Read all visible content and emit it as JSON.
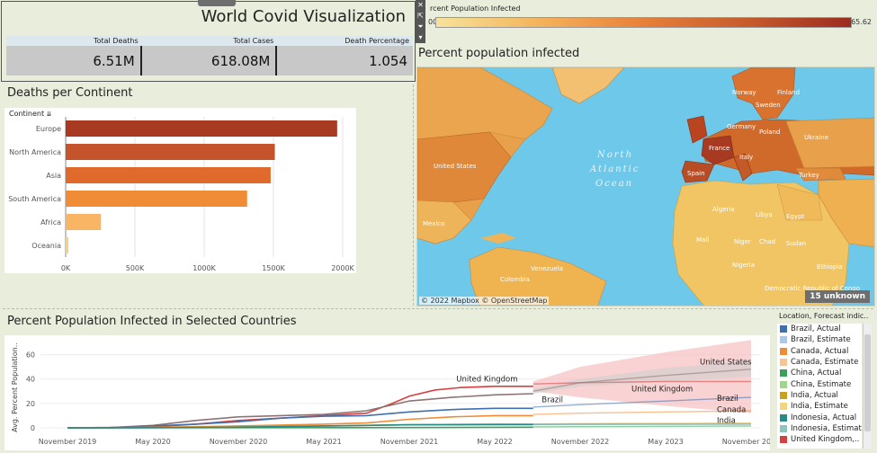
{
  "header": {
    "title": "World Covid Visualization",
    "kpis": [
      {
        "label": "Total Deaths",
        "value": "6.51M"
      },
      {
        "label": "Total Cases",
        "value": "618.08M"
      },
      {
        "label": "Death Percentage",
        "value": "1.054"
      }
    ]
  },
  "toolbar": {
    "icons": [
      "close-icon",
      "popout-icon",
      "filter-icon",
      "dropdown-icon"
    ],
    "glyphs": [
      "✕",
      "⇱",
      "⏷",
      "▾"
    ]
  },
  "gradient_legend": {
    "title": "rcent Population Infected",
    "min_label": "00",
    "max_label": "65.62",
    "colors": [
      "#f7e39b",
      "#9c2c20"
    ]
  },
  "map": {
    "title": "Percent population infected",
    "ocean_label_1": "North",
    "ocean_label_2": "Atlantic",
    "ocean_label_3": "Ocean",
    "labels": [
      "United States",
      "Mexico",
      "Venezuela",
      "Colombia",
      "Peru",
      "Norway",
      "Finland",
      "Germany",
      "Poland",
      "France",
      "Italy",
      "Spain",
      "Ukraine",
      "Turkey",
      "Algeria",
      "Libya",
      "Egypt",
      "Mali",
      "Niger",
      "Chad",
      "Sudan",
      "Nigeria",
      "Ethiopia",
      "Democratic Republic of Congo",
      "Sweden"
    ],
    "attribution": "© 2022 Mapbox © OpenStreetMap",
    "unknown": "15 unknown"
  },
  "bar_chart": {
    "title": "Deaths per Continent",
    "column_header": "Continent",
    "chart_data": {
      "type": "bar",
      "orientation": "horizontal",
      "categories": [
        "Europe",
        "North America",
        "Asia",
        "South America",
        "Africa",
        "Oceania"
      ],
      "values": [
        1960000,
        1510000,
        1480000,
        1310000,
        255000,
        20000
      ],
      "colors": [
        "#a83a22",
        "#c5532b",
        "#df6a2b",
        "#f08c35",
        "#f9b464",
        "#f8d27a"
      ],
      "xticks": [
        "0K",
        "500K",
        "1000K",
        "1500K",
        "2000K"
      ],
      "xlim": [
        0,
        2000000
      ]
    }
  },
  "line_chart": {
    "title": "Percent Population Infected in Selected Countries",
    "chart_data": {
      "type": "line",
      "ylabel": "Avg. Percent Population..",
      "yticks": [
        "0",
        "20",
        "40",
        "60"
      ],
      "ylim": [
        0,
        70
      ],
      "xticks": [
        "November 2019",
        "May 2020",
        "November 2020",
        "May 2021",
        "November 2021",
        "May 2022",
        "November 2022",
        "May 2023",
        "November 2023"
      ],
      "series": [
        {
          "name": "United Kingdom",
          "color": "#d6403f",
          "actual": [
            [
              0,
              0
            ],
            [
              0.5,
              0
            ],
            [
              1,
              1
            ],
            [
              1.5,
              3
            ],
            [
              2,
              6
            ],
            [
              2.5,
              8
            ],
            [
              3,
              10
            ],
            [
              3.5,
              12
            ],
            [
              3.8,
              20
            ],
            [
              4,
              26
            ],
            [
              4.3,
              31
            ],
            [
              4.6,
              33
            ],
            [
              5,
              34
            ],
            [
              5.45,
              34
            ]
          ],
          "forecast": [
            [
              5.45,
              36
            ],
            [
              6,
              37
            ],
            [
              7,
              38
            ],
            [
              8,
              38
            ]
          ],
          "band": [
            [
              5.45,
              30,
              38
            ],
            [
              6,
              25,
              50
            ],
            [
              7,
              18,
              62
            ],
            [
              8,
              12,
              72
            ]
          ],
          "band_color": "#f7c1c0"
        },
        {
          "name": "United States",
          "color": "#8c7474",
          "actual": [
            [
              0,
              0
            ],
            [
              0.5,
              0.3
            ],
            [
              1,
              2
            ],
            [
              1.5,
              6
            ],
            [
              2,
              9
            ],
            [
              2.5,
              10
            ],
            [
              3,
              11
            ],
            [
              3.5,
              14
            ],
            [
              4,
              22
            ],
            [
              4.5,
              25
            ],
            [
              5,
              27
            ],
            [
              5.45,
              28
            ]
          ],
          "forecast": [
            [
              5.45,
              30
            ],
            [
              6,
              37
            ],
            [
              7,
              43
            ],
            [
              8,
              48
            ]
          ],
          "band": [
            [
              5.45,
              28,
              32
            ],
            [
              6,
              34,
              40
            ],
            [
              7,
              38,
              49
            ],
            [
              8,
              42,
              55
            ]
          ],
          "band_color": "#d6cfcf"
        },
        {
          "name": "Brazil",
          "color": "#3f6fb0",
          "actual": [
            [
              0,
              0
            ],
            [
              0.5,
              0.2
            ],
            [
              1,
              1.5
            ],
            [
              1.5,
              3
            ],
            [
              2,
              5
            ],
            [
              2.5,
              8
            ],
            [
              3,
              9.5
            ],
            [
              3.5,
              10
            ],
            [
              4,
              13
            ],
            [
              4.5,
              15
            ],
            [
              5,
              16
            ],
            [
              5.45,
              16
            ]
          ],
          "forecast": [
            [
              5.45,
              17
            ],
            [
              6,
              19
            ],
            [
              7,
              22
            ],
            [
              8,
              25
            ]
          ],
          "band": [],
          "band_color": ""
        },
        {
          "name": "Canada",
          "color": "#f08c35",
          "actual": [
            [
              0,
              0
            ],
            [
              1,
              0.4
            ],
            [
              2,
              1.5
            ],
            [
              3,
              3
            ],
            [
              3.5,
              4
            ],
            [
              4,
              7
            ],
            [
              4.5,
              9
            ],
            [
              5,
              10
            ],
            [
              5.45,
              10
            ]
          ],
          "forecast": [
            [
              5.45,
              11
            ],
            [
              6,
              12
            ],
            [
              7,
              13
            ],
            [
              8,
              14
            ]
          ],
          "band": [],
          "band_color": ""
        },
        {
          "name": "India",
          "color": "#c9a11b",
          "actual": [
            [
              0,
              0
            ],
            [
              1,
              0.2
            ],
            [
              2,
              0.6
            ],
            [
              3,
              1.5
            ],
            [
              4,
              2.5
            ],
            [
              5,
              3
            ],
            [
              5.45,
              3
            ]
          ],
          "forecast": [
            [
              5.45,
              3.2
            ],
            [
              6,
              3.4
            ],
            [
              7,
              3.6
            ],
            [
              8,
              3.8
            ]
          ],
          "band": [],
          "band_color": ""
        },
        {
          "name": "China",
          "color": "#3aa05a",
          "actual": [
            [
              0,
              0
            ],
            [
              2,
              0.1
            ],
            [
              4,
              0.2
            ],
            [
              5.45,
              0.5
            ]
          ],
          "forecast": [
            [
              5.45,
              0.8
            ],
            [
              6,
              1
            ],
            [
              7,
              1.2
            ],
            [
              8,
              1.5
            ]
          ],
          "band": [],
          "band_color": ""
        },
        {
          "name": "Indonesia",
          "color": "#2a8a84",
          "actual": [
            [
              0,
              0
            ],
            [
              1,
              0.1
            ],
            [
              2,
              0.5
            ],
            [
              3,
              1.5
            ],
            [
              4,
              2.5
            ],
            [
              5,
              2.6
            ],
            [
              5.45,
              2.6
            ]
          ],
          "forecast": [
            [
              5.45,
              2.7
            ],
            [
              6,
              2.8
            ],
            [
              7,
              2.9
            ],
            [
              8,
              3
            ]
          ],
          "band": [],
          "band_color": ""
        }
      ],
      "annotations": [
        {
          "text": "United Kingdom",
          "x": 4.55,
          "y": 38
        },
        {
          "text": "Brazil",
          "x": 5.55,
          "y": 21
        },
        {
          "text": "United States",
          "x": 7.4,
          "y": 52
        },
        {
          "text": "United Kingdom",
          "x": 6.6,
          "y": 30
        },
        {
          "text": "Brazil",
          "x": 7.6,
          "y": 22
        },
        {
          "text": "Canada",
          "x": 7.6,
          "y": 13
        },
        {
          "text": "India",
          "x": 7.6,
          "y": 4
        }
      ]
    }
  },
  "series_legend": {
    "title": "Location, Forecast indic..",
    "items": [
      {
        "label": "Brazil, Actual",
        "color": "#3f6fb0"
      },
      {
        "label": "Brazil, Estimate",
        "color": "#a9c8ea"
      },
      {
        "label": "Canada, Actual",
        "color": "#f08c35"
      },
      {
        "label": "Canada, Estimate",
        "color": "#f8c495"
      },
      {
        "label": "China, Actual",
        "color": "#3aa05a"
      },
      {
        "label": "China, Estimate",
        "color": "#9ed68a"
      },
      {
        "label": "India, Actual",
        "color": "#c9a11b"
      },
      {
        "label": "India, Estimate",
        "color": "#f3d67c"
      },
      {
        "label": "Indonesia, Actual",
        "color": "#2a8a84"
      },
      {
        "label": "Indonesia, Estimate",
        "color": "#8cc6bf"
      },
      {
        "label": "United Kingdom,..",
        "color": "#d6403f"
      }
    ]
  }
}
